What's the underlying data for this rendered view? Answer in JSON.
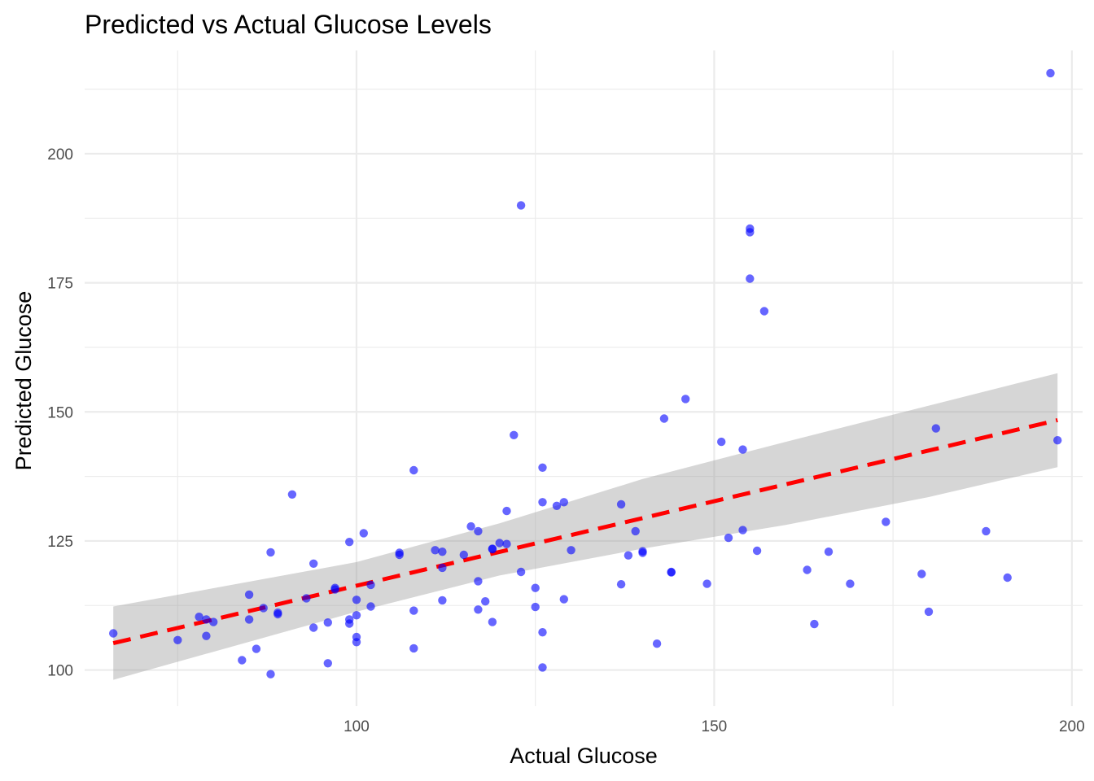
{
  "chart_data": {
    "type": "scatter",
    "title": "Predicted vs Actual Glucose Levels",
    "xlabel": "Actual Glucose",
    "ylabel": "Predicted Glucose",
    "xlim": [
      62,
      201.5
    ],
    "ylim": [
      93,
      220
    ],
    "x_ticks": [
      100,
      150,
      200
    ],
    "x_minor_ticks": [
      75,
      125,
      175
    ],
    "y_ticks": [
      100,
      125,
      150,
      175,
      200
    ],
    "y_minor_ticks": [
      112.5,
      137.5,
      162.5,
      187.5,
      212.5
    ],
    "grid": true,
    "legend": "none",
    "colors": {
      "points": "#0000ff",
      "point_opacity": 0.6,
      "trend_line": "#ff0000",
      "confidence_band": "#999999",
      "band_opacity": 0.4,
      "grid": "#ebebeb"
    },
    "points": [
      [
        197,
        215.6
      ],
      [
        123,
        190
      ],
      [
        155,
        185.5
      ],
      [
        155,
        184.8
      ],
      [
        155,
        175.8
      ],
      [
        157,
        169.5
      ],
      [
        146,
        152.5
      ],
      [
        143,
        148.7
      ],
      [
        151,
        144.2
      ],
      [
        154,
        142.7
      ],
      [
        181,
        146.8
      ],
      [
        198,
        144.5
      ],
      [
        122,
        145.5
      ],
      [
        108,
        138.7
      ],
      [
        126,
        139.2
      ],
      [
        91,
        134
      ],
      [
        126,
        132.5
      ],
      [
        129,
        132.5
      ],
      [
        128,
        131.8
      ],
      [
        137,
        132.1
      ],
      [
        121,
        130.8
      ],
      [
        116,
        127.8
      ],
      [
        117,
        126.9
      ],
      [
        101,
        126.5
      ],
      [
        99,
        124.8
      ],
      [
        120,
        124.6
      ],
      [
        121,
        124.4
      ],
      [
        139,
        126.9
      ],
      [
        154,
        127.1
      ],
      [
        152,
        125.6
      ],
      [
        174,
        128.7
      ],
      [
        188,
        126.9
      ],
      [
        88,
        122.8
      ],
      [
        106,
        122.7
      ],
      [
        106,
        122.3
      ],
      [
        111,
        123.2
      ],
      [
        112,
        122.9
      ],
      [
        115,
        122.3
      ],
      [
        119,
        123.5
      ],
      [
        119,
        123.4
      ],
      [
        130,
        123.2
      ],
      [
        138,
        122.2
      ],
      [
        140,
        123
      ],
      [
        140,
        122.7
      ],
      [
        156,
        123.1
      ],
      [
        166,
        122.9
      ],
      [
        94,
        120.6
      ],
      [
        112,
        119.8
      ],
      [
        123,
        119
      ],
      [
        144,
        119
      ],
      [
        144,
        118.9
      ],
      [
        163,
        119.4
      ],
      [
        179,
        118.6
      ],
      [
        191,
        117.9
      ],
      [
        117,
        117.2
      ],
      [
        102,
        116.5
      ],
      [
        97,
        115.9
      ],
      [
        97,
        115.6
      ],
      [
        125,
        115.9
      ],
      [
        137,
        116.6
      ],
      [
        149,
        116.7
      ],
      [
        169,
        116.7
      ],
      [
        85,
        114.6
      ],
      [
        93,
        113.9
      ],
      [
        100,
        113.6
      ],
      [
        112,
        113.5
      ],
      [
        118,
        113.3
      ],
      [
        129,
        113.7
      ],
      [
        87,
        112
      ],
      [
        102,
        112.3
      ],
      [
        108,
        111.5
      ],
      [
        117,
        111.7
      ],
      [
        125,
        112.2
      ],
      [
        180,
        111.3
      ],
      [
        89,
        110.8
      ],
      [
        89,
        111.1
      ],
      [
        78,
        110.3
      ],
      [
        79,
        109.8
      ],
      [
        85,
        109.8
      ],
      [
        80,
        109.3
      ],
      [
        96,
        109.2
      ],
      [
        99,
        109.8
      ],
      [
        99,
        109
      ],
      [
        100,
        110.6
      ],
      [
        119,
        109.3
      ],
      [
        94,
        108.2
      ],
      [
        164,
        108.9
      ],
      [
        66,
        107.1
      ],
      [
        75,
        105.8
      ],
      [
        79,
        106.6
      ],
      [
        100,
        106.4
      ],
      [
        100,
        105.4
      ],
      [
        126,
        107.3
      ],
      [
        142,
        105.1
      ],
      [
        86,
        104.1
      ],
      [
        108,
        104.2
      ],
      [
        84,
        101.9
      ],
      [
        96,
        101.3
      ],
      [
        126,
        100.5
      ],
      [
        88,
        99.2
      ]
    ],
    "trend_line": {
      "x_start": 66,
      "x_end": 198,
      "y_start": 105.2,
      "y_end": 148.4
    },
    "confidence_band": {
      "x": [
        66,
        100,
        120,
        140,
        160,
        180,
        198
      ],
      "lower": [
        98.1,
        111.3,
        118.3,
        123.5,
        128.1,
        133.5,
        139.3
      ],
      "upper": [
        112.3,
        120.9,
        128.4,
        137.0,
        144.2,
        151.2,
        157.5
      ]
    }
  }
}
